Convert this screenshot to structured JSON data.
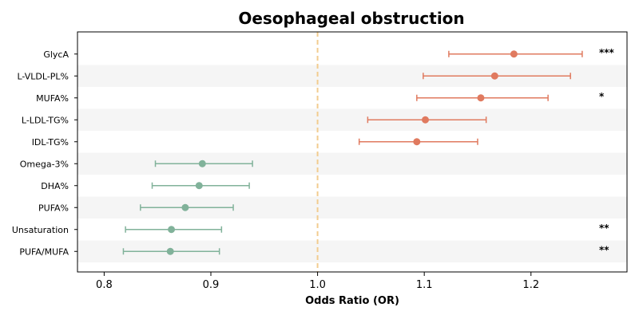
{
  "chart_data": {
    "type": "forest",
    "title": "Oesophageal obstruction",
    "xlabel": "Odds Ratio (OR)",
    "xlim": [
      0.775,
      1.29
    ],
    "xticks": [
      "0.8",
      "0.9",
      "1.0",
      "1.1",
      "1.2"
    ],
    "xtick_values": [
      0.8,
      0.9,
      1.0,
      1.1,
      1.2
    ],
    "reference_line": 1.0,
    "colors": {
      "positive": "#e07a5f",
      "negative": "#81b29a",
      "reference": "#f2cc8f",
      "band": "#f5f5f5"
    },
    "rows": [
      {
        "label": "GlycA",
        "or": 1.184,
        "lo": 1.123,
        "hi": 1.248,
        "sig": "***"
      },
      {
        "label": "L-VLDL-PL%",
        "or": 1.166,
        "lo": 1.099,
        "hi": 1.237,
        "sig": ""
      },
      {
        "label": "MUFA%",
        "or": 1.153,
        "lo": 1.093,
        "hi": 1.216,
        "sig": "*"
      },
      {
        "label": "L-LDL-TG%",
        "or": 1.101,
        "lo": 1.047,
        "hi": 1.158,
        "sig": ""
      },
      {
        "label": "IDL-TG%",
        "or": 1.093,
        "lo": 1.039,
        "hi": 1.15,
        "sig": ""
      },
      {
        "label": "Omega-3%",
        "or": 0.892,
        "lo": 0.848,
        "hi": 0.939,
        "sig": ""
      },
      {
        "label": "DHA%",
        "or": 0.889,
        "lo": 0.845,
        "hi": 0.936,
        "sig": ""
      },
      {
        "label": "PUFA%",
        "or": 0.876,
        "lo": 0.834,
        "hi": 0.921,
        "sig": ""
      },
      {
        "label": "Unsaturation",
        "or": 0.863,
        "lo": 0.82,
        "hi": 0.91,
        "sig": "**"
      },
      {
        "label": "PUFA/MUFA",
        "or": 0.862,
        "lo": 0.818,
        "hi": 0.908,
        "sig": "**"
      }
    ]
  }
}
